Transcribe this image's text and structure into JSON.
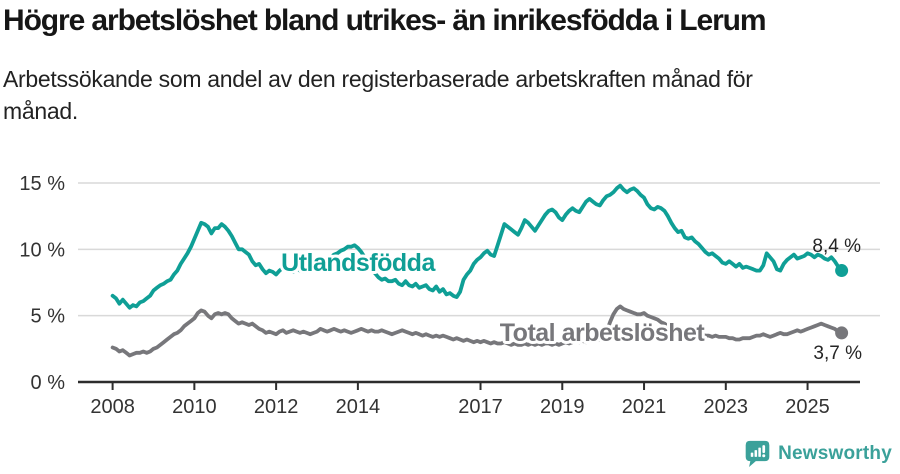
{
  "header": {
    "title": "Högre arbetslöshet bland utrikes- än inrikesfödda i Lerum",
    "subtitle": "Arbetssökande som andel av den registerbaserade arbetskraften månad för månad."
  },
  "colors": {
    "utlandsfodda": "#0f9f96",
    "total_arbetsloshet": "#77777b",
    "grid": "#d9d9d9",
    "axis": "#2d2d2d",
    "tick_text": "#333333",
    "end_label_text": "#252525",
    "brand": "#3ba19a"
  },
  "chart_data": {
    "type": "line",
    "title": "Högre arbetslöshet bland utrikes- än inrikesfödda i Lerum",
    "xlabel": "",
    "ylabel": "",
    "x_start": 2008.0,
    "points_per_year": 12,
    "x_ticks": [
      2008,
      2010,
      2012,
      2014,
      2017,
      2019,
      2021,
      2023,
      2025
    ],
    "x_tick_labels": [
      "2008",
      "2010",
      "2012",
      "2014",
      "2017",
      "2019",
      "2021",
      "2023",
      "2025"
    ],
    "y_ticks": [
      0,
      5,
      10,
      15
    ],
    "y_tick_labels": [
      "0 %",
      "5 %",
      "10 %",
      "15 %"
    ],
    "ylim": [
      0,
      15.5
    ],
    "grid": "horizontal",
    "legend": "inline-labels",
    "series": [
      {
        "name": "Utlandsfödda",
        "color": "#0f9f96",
        "end_label": "8,4 %",
        "end_value": 8.4,
        "values": [
          6.5,
          6.3,
          5.9,
          6.2,
          5.9,
          5.6,
          5.8,
          5.7,
          6.0,
          6.1,
          6.3,
          6.5,
          6.9,
          7.1,
          7.3,
          7.4,
          7.6,
          7.7,
          8.1,
          8.4,
          8.9,
          9.3,
          9.7,
          10.2,
          10.8,
          11.4,
          12.0,
          11.9,
          11.7,
          11.2,
          11.6,
          11.6,
          11.9,
          11.7,
          11.4,
          11.0,
          10.5,
          10.0,
          10.0,
          9.8,
          9.6,
          9.1,
          8.8,
          8.9,
          8.5,
          8.2,
          8.4,
          8.3,
          8.1,
          8.4,
          8.6,
          8.7,
          8.4,
          8.3,
          8.6,
          8.4,
          8.3,
          8.6,
          8.5,
          8.6,
          8.7,
          9.0,
          9.1,
          9.3,
          9.4,
          9.6,
          9.7,
          9.9,
          10.0,
          10.2,
          10.2,
          10.3,
          10.1,
          9.8,
          9.4,
          9.0,
          8.6,
          8.2,
          7.9,
          7.7,
          7.8,
          7.6,
          7.6,
          7.7,
          7.4,
          7.3,
          7.6,
          7.3,
          7.2,
          7.4,
          7.1,
          7.2,
          7.3,
          7.0,
          6.9,
          7.2,
          6.8,
          7.0,
          6.6,
          6.7,
          6.5,
          6.4,
          6.8,
          7.7,
          8.1,
          8.4,
          8.9,
          9.2,
          9.4,
          9.7,
          9.9,
          9.6,
          9.5,
          10.3,
          11.1,
          11.9,
          11.7,
          11.5,
          11.3,
          11.1,
          11.6,
          12.2,
          12.0,
          11.7,
          11.4,
          11.8,
          12.2,
          12.6,
          12.9,
          13.0,
          12.8,
          12.4,
          12.2,
          12.6,
          12.9,
          13.1,
          12.9,
          12.8,
          13.2,
          13.6,
          13.8,
          13.6,
          13.4,
          13.3,
          13.7,
          14.0,
          14.1,
          14.3,
          14.6,
          14.8,
          14.5,
          14.3,
          14.5,
          14.6,
          14.4,
          14.1,
          13.9,
          13.4,
          13.1,
          13.0,
          13.2,
          13.1,
          12.9,
          12.5,
          12.0,
          11.6,
          11.3,
          11.4,
          10.9,
          10.8,
          10.9,
          10.6,
          10.4,
          10.1,
          9.8,
          9.6,
          9.7,
          9.5,
          9.3,
          9.0,
          8.9,
          9.1,
          8.9,
          8.7,
          8.9,
          8.6,
          8.7,
          8.6,
          8.5,
          8.4,
          8.4,
          8.8,
          9.7,
          9.4,
          9.1,
          8.5,
          8.4,
          8.9,
          9.2,
          9.4,
          9.6,
          9.3,
          9.4,
          9.5,
          9.7,
          9.6,
          9.4,
          9.6,
          9.5,
          9.3,
          9.2,
          9.4,
          9.1,
          8.7,
          8.4
        ]
      },
      {
        "name": "Total arbetslöshet",
        "color": "#77777b",
        "end_label": "3,7 %",
        "end_value": 3.7,
        "values": [
          2.6,
          2.5,
          2.3,
          2.4,
          2.2,
          2.0,
          2.1,
          2.2,
          2.2,
          2.3,
          2.2,
          2.3,
          2.5,
          2.6,
          2.8,
          3.0,
          3.2,
          3.4,
          3.6,
          3.7,
          3.9,
          4.2,
          4.4,
          4.6,
          4.8,
          5.2,
          5.4,
          5.3,
          5.0,
          4.8,
          5.1,
          5.2,
          5.1,
          5.2,
          5.1,
          4.8,
          4.6,
          4.4,
          4.5,
          4.4,
          4.3,
          4.4,
          4.2,
          4.0,
          3.9,
          3.7,
          3.8,
          3.7,
          3.6,
          3.8,
          3.9,
          3.7,
          3.8,
          3.9,
          3.8,
          3.7,
          3.8,
          3.7,
          3.6,
          3.7,
          3.8,
          4.0,
          3.9,
          3.8,
          3.9,
          4.0,
          3.9,
          3.8,
          3.9,
          3.8,
          3.7,
          3.8,
          3.9,
          4.0,
          3.9,
          3.8,
          3.9,
          3.8,
          3.8,
          3.9,
          3.8,
          3.7,
          3.6,
          3.7,
          3.8,
          3.9,
          3.8,
          3.7,
          3.6,
          3.7,
          3.6,
          3.5,
          3.6,
          3.5,
          3.4,
          3.5,
          3.4,
          3.5,
          3.4,
          3.3,
          3.2,
          3.3,
          3.2,
          3.1,
          3.2,
          3.1,
          3.0,
          3.1,
          3.0,
          3.1,
          3.0,
          2.9,
          3.0,
          2.9,
          2.9,
          3.0,
          2.9,
          2.8,
          2.9,
          2.8,
          2.8,
          2.9,
          2.8,
          2.9,
          2.8,
          2.9,
          2.8,
          2.9,
          2.9,
          2.8,
          2.9,
          2.8,
          2.9,
          3.0,
          2.9,
          3.0,
          3.1,
          3.0,
          3.1,
          3.0,
          3.1,
          3.2,
          3.1,
          3.2,
          3.4,
          3.8,
          4.5,
          5.1,
          5.5,
          5.7,
          5.5,
          5.4,
          5.3,
          5.2,
          5.1,
          5.1,
          5.2,
          5.0,
          4.9,
          4.8,
          4.7,
          4.5,
          4.4,
          4.2,
          4.1,
          4.0,
          3.9,
          3.8,
          3.7,
          3.7,
          3.7,
          3.7,
          3.6,
          3.6,
          3.5,
          3.5,
          3.4,
          3.5,
          3.4,
          3.4,
          3.4,
          3.3,
          3.3,
          3.2,
          3.2,
          3.3,
          3.3,
          3.3,
          3.4,
          3.5,
          3.5,
          3.6,
          3.5,
          3.4,
          3.5,
          3.6,
          3.7,
          3.6,
          3.6,
          3.7,
          3.8,
          3.9,
          3.8,
          3.9,
          4.0,
          4.1,
          4.2,
          4.3,
          4.4,
          4.3,
          4.2,
          4.1,
          4.0,
          3.8,
          3.7
        ]
      }
    ]
  },
  "footer": {
    "brand": "Newsworthy"
  }
}
